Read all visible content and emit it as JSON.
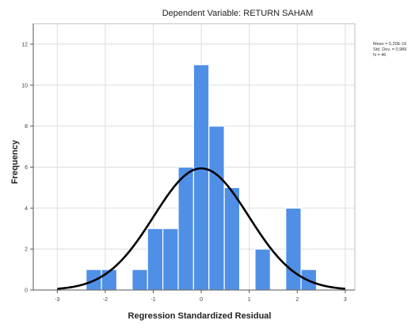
{
  "chart_data": {
    "type": "bar",
    "title": "Dependent Variable: RETURN SAHAM",
    "xlabel": "Regression Standardized Residual",
    "ylabel": "Frequency",
    "xlim": [
      -3.5,
      3.2
    ],
    "ylim": [
      0,
      13
    ],
    "x_ticks": [
      -3,
      -2,
      -1,
      0,
      1,
      2,
      3
    ],
    "y_ticks": [
      0,
      2,
      4,
      6,
      8,
      10,
      12
    ],
    "grid": true,
    "bar_color": "#4f8fe6",
    "bar_edge_color": "#ffffff",
    "curve_color": "#000000",
    "bins": [
      {
        "x0": -2.4,
        "x1": -2.08,
        "value": 1
      },
      {
        "x0": -2.08,
        "x1": -1.76,
        "value": 1
      },
      {
        "x0": -1.76,
        "x1": -1.44,
        "value": 0
      },
      {
        "x0": -1.44,
        "x1": -1.12,
        "value": 1
      },
      {
        "x0": -1.12,
        "x1": -0.8,
        "value": 3
      },
      {
        "x0": -0.8,
        "x1": -0.48,
        "value": 3
      },
      {
        "x0": -0.48,
        "x1": -0.16,
        "value": 6
      },
      {
        "x0": -0.16,
        "x1": 0.16,
        "value": 11
      },
      {
        "x0": 0.16,
        "x1": 0.48,
        "value": 8
      },
      {
        "x0": 0.48,
        "x1": 0.8,
        "value": 5
      },
      {
        "x0": 0.8,
        "x1": 1.12,
        "value": 0
      },
      {
        "x0": 1.12,
        "x1": 1.44,
        "value": 2
      },
      {
        "x0": 1.44,
        "x1": 1.76,
        "value": 0
      },
      {
        "x0": 1.76,
        "x1": 2.08,
        "value": 4
      },
      {
        "x0": 2.08,
        "x1": 2.4,
        "value": 1
      }
    ],
    "normal_curve": {
      "mean": 0,
      "std_dev": 0.989,
      "n": 46,
      "bin_width": 0.32
    },
    "stats_labels": [
      "Mean = 5,20E-16",
      "Std. Dev. = 0,989",
      "N = 46"
    ]
  }
}
